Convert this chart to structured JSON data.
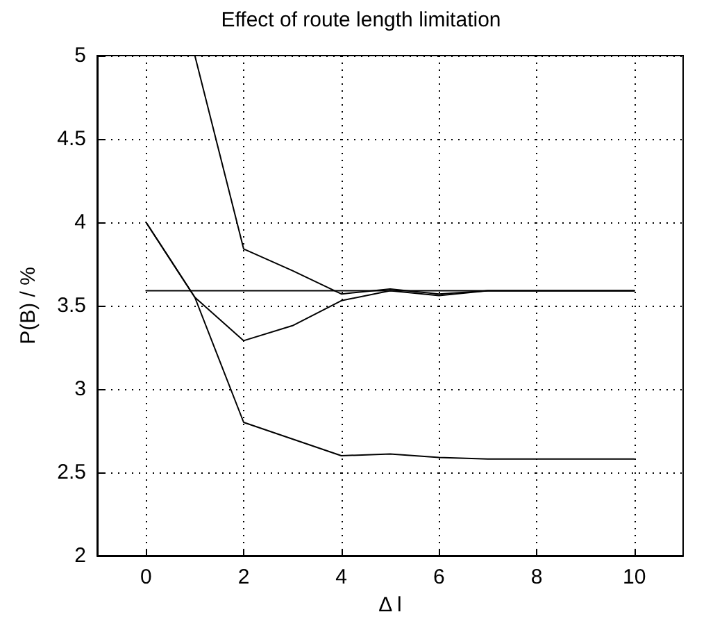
{
  "chart_data": {
    "type": "line",
    "title": "Effect of route length limitation",
    "xlabel": "Δ l",
    "ylabel": "P(B) / %",
    "x": [
      0,
      1,
      2,
      3,
      4,
      5,
      6,
      7,
      8,
      9,
      10
    ],
    "series": [
      {
        "color": "#000000",
        "values": [
          3.59,
          3.59,
          3.59,
          3.59,
          3.59,
          3.59,
          3.59,
          3.59,
          3.59,
          3.59,
          3.59
        ]
      },
      {
        "color": "#000000",
        "values": [
          null,
          5.0,
          3.84,
          3.71,
          3.57,
          3.6,
          3.57,
          3.59,
          3.59,
          3.59,
          3.59
        ]
      },
      {
        "color": "#000000",
        "values": [
          4.0,
          3.55,
          3.29,
          3.38,
          3.53,
          3.59,
          3.56,
          3.59,
          3.59,
          3.59,
          3.59
        ]
      },
      {
        "color": "#000000",
        "values": [
          4.0,
          3.55,
          2.8,
          2.7,
          2.6,
          2.61,
          2.59,
          2.58,
          2.58,
          2.58,
          2.58
        ]
      }
    ],
    "xlim": [
      -1,
      11
    ],
    "xticks": [
      0,
      2,
      4,
      6,
      8,
      10
    ],
    "ylim": [
      2,
      5
    ],
    "yticks": [
      2,
      2.5,
      3,
      3.5,
      4,
      4.5,
      5
    ],
    "grid": true,
    "marker": "none",
    "line_style": "solid"
  }
}
